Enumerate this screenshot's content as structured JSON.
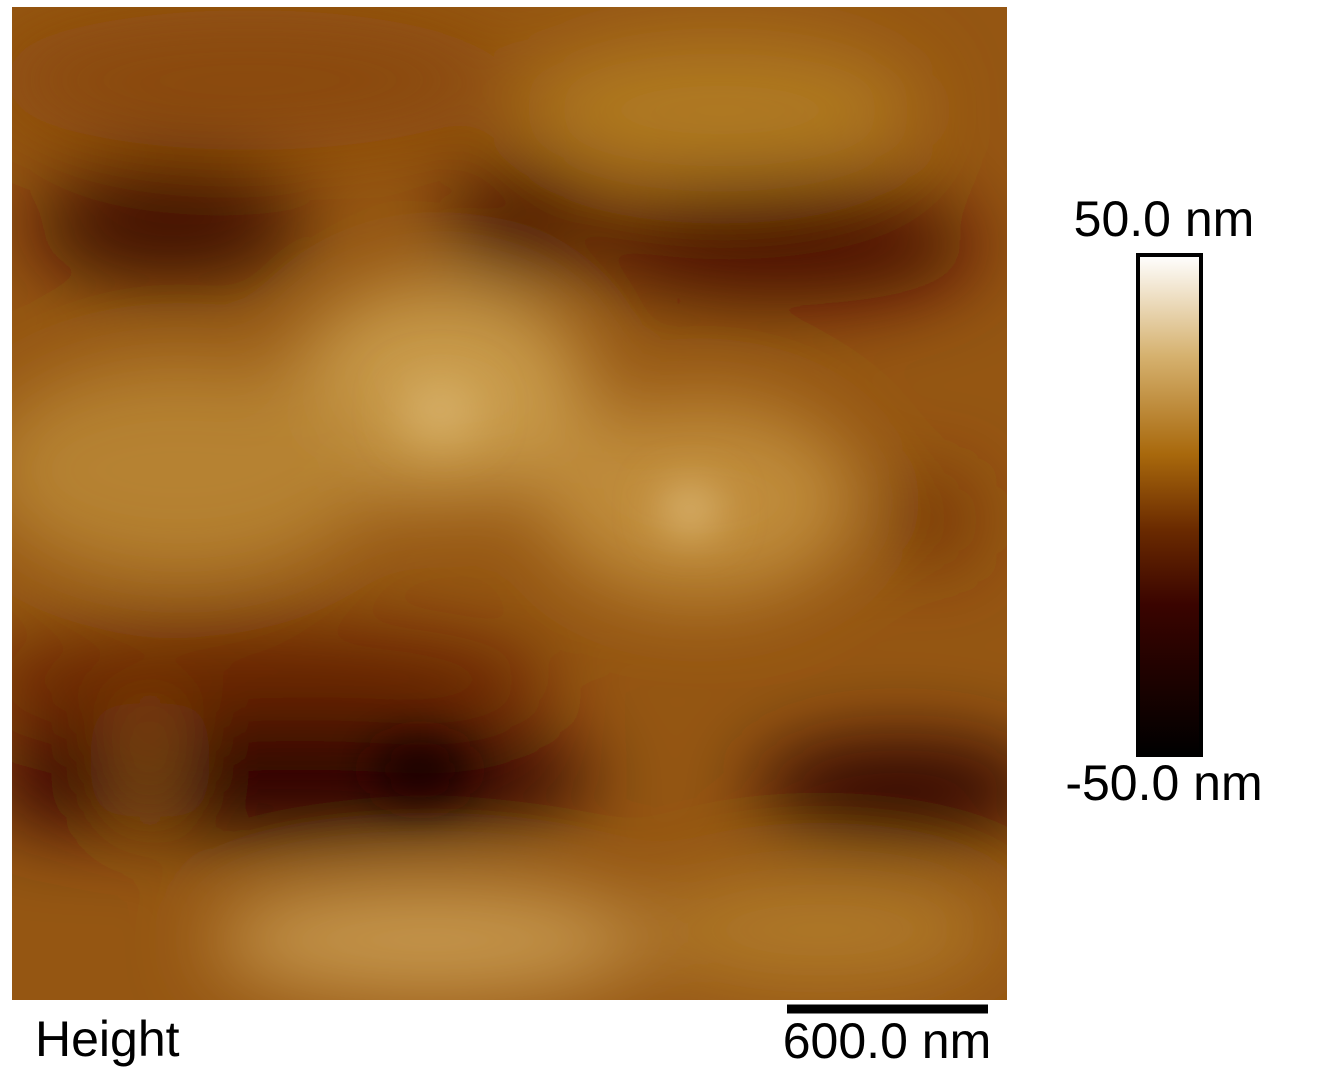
{
  "image": {
    "label": "Height",
    "scale_bar": "600.0 nm"
  },
  "colorbar": {
    "max": "50.0 nm",
    "min": "-50.0 nm"
  }
}
